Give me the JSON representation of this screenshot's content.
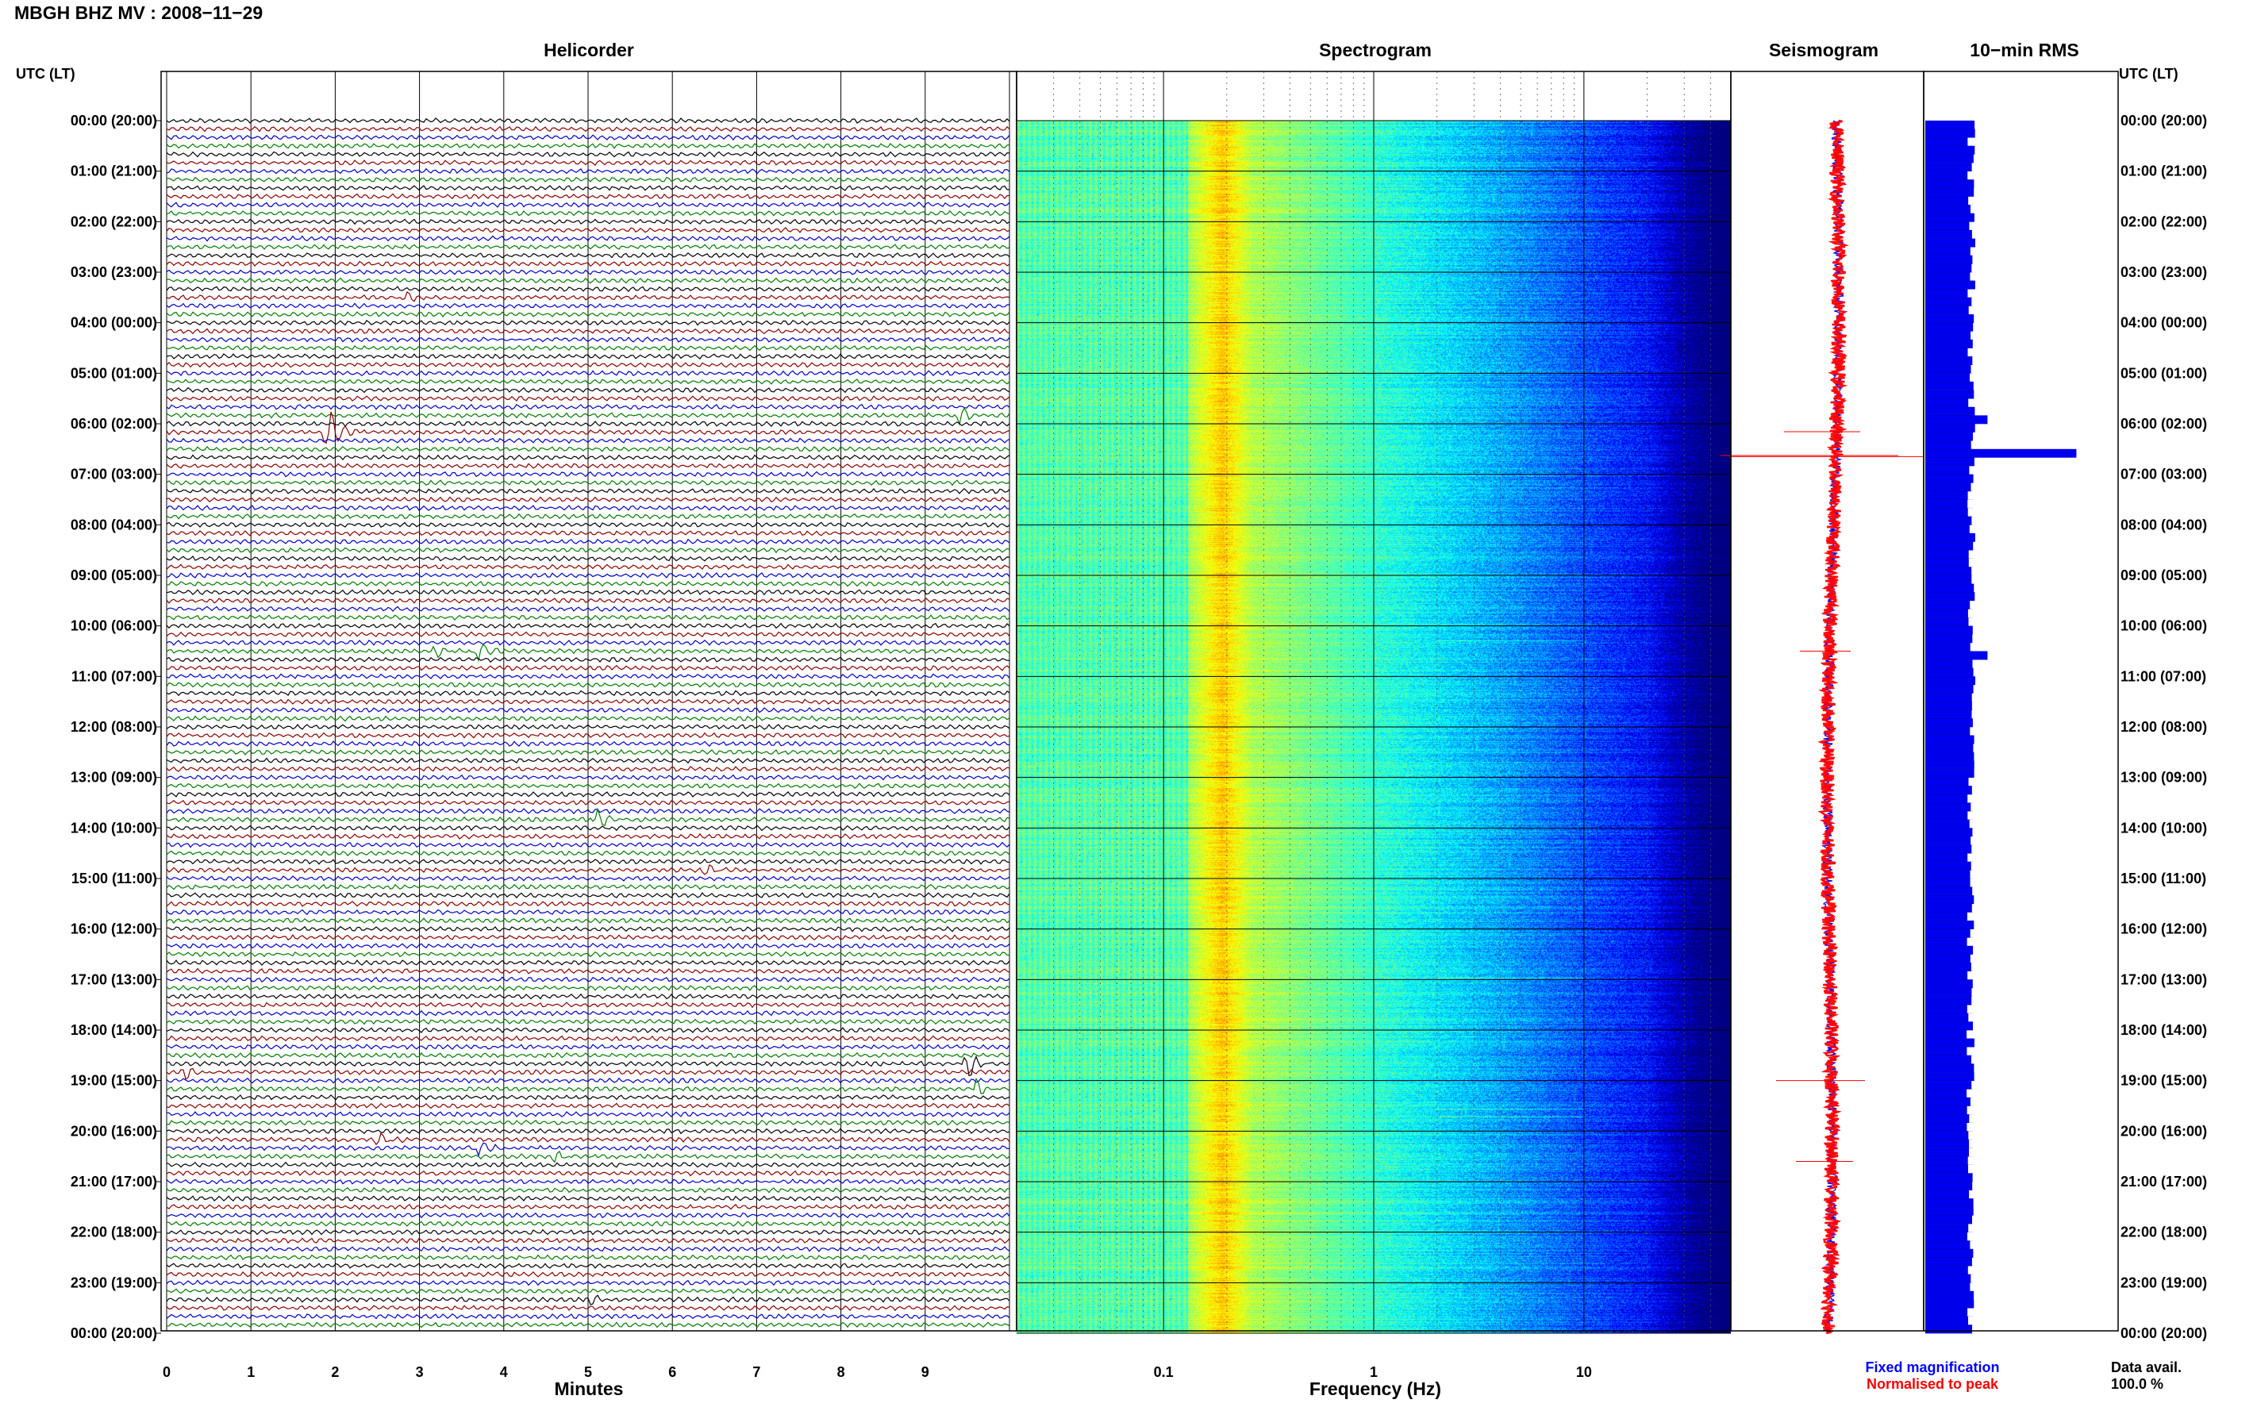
{
  "header": {
    "title": "MBGH BHZ MV : 2008−11−29",
    "utc_label_left": "UTC (LT)",
    "utc_label_right": "UTC (LT)"
  },
  "panels": {
    "helicorder": "Helicorder",
    "spectrogram": "Spectrogram",
    "seismogram": "Seismogram",
    "rms": "10−min RMS"
  },
  "footer": {
    "legend_fixed": "Fixed magnification",
    "legend_normalised": "Normalised to peak",
    "data_avail_label": "Data avail.",
    "data_avail_value": "100.0 %"
  },
  "colors": {
    "helicorder_traces": [
      "#000000",
      "#8b0000",
      "#0000c8",
      "#007d00"
    ],
    "fixed": "#0000ff",
    "normalised": "#ff0000",
    "rms_bar": "#0000ee",
    "spectrogram_low": "#0a1ec8",
    "spectrogram_peak": "#e6e600"
  },
  "chart_data": [
    {
      "type": "line",
      "name": "Helicorder",
      "xlabel": "Minutes",
      "xlim": [
        0,
        10
      ],
      "x_ticks": [
        "0",
        "1",
        "2",
        "3",
        "4",
        "5",
        "6",
        "7",
        "8",
        "9"
      ],
      "y_ticks": [
        "00:00 (20:00)",
        "01:00 (21:00)",
        "02:00 (22:00)",
        "03:00 (23:00)",
        "04:00 (00:00)",
        "05:00 (01:00)",
        "06:00 (02:00)",
        "07:00 (03:00)",
        "08:00 (04:00)",
        "09:00 (05:00)",
        "10:00 (06:00)",
        "11:00 (07:00)",
        "12:00 (08:00)",
        "13:00 (09:00)",
        "14:00 (10:00)",
        "15:00 (11:00)",
        "16:00 (12:00)",
        "17:00 (13:00)",
        "18:00 (14:00)",
        "19:00 (15:00)",
        "20:00 (16:00)",
        "21:00 (17:00)",
        "22:00 (18:00)",
        "23:00 (19:00)",
        "00:00 (20:00)"
      ],
      "line_count": 144,
      "events": [
        {
          "line": 37,
          "minute": 1.9,
          "amplitude": 5.0
        },
        {
          "line": 35,
          "minute": 9.4,
          "amplitude": 1.5
        },
        {
          "line": 21,
          "minute": 2.8,
          "amplitude": 1.2
        },
        {
          "line": 63,
          "minute": 3.7,
          "amplitude": 1.8
        },
        {
          "line": 63,
          "minute": 3.2,
          "amplitude": 1.0
        },
        {
          "line": 83,
          "minute": 5.1,
          "amplitude": 1.5
        },
        {
          "line": 89,
          "minute": 6.4,
          "amplitude": 1.2
        },
        {
          "line": 112,
          "minute": 9.5,
          "amplitude": 2.2
        },
        {
          "line": 113,
          "minute": 0.2,
          "amplitude": 1.2
        },
        {
          "line": 115,
          "minute": 9.6,
          "amplitude": 1.2
        },
        {
          "line": 121,
          "minute": 2.5,
          "amplitude": 1.4
        },
        {
          "line": 122,
          "minute": 3.7,
          "amplitude": 1.5
        },
        {
          "line": 123,
          "minute": 4.6,
          "amplitude": 1.0
        },
        {
          "line": 140,
          "minute": 5.0,
          "amplitude": 1.0
        }
      ]
    },
    {
      "type": "heatmap",
      "name": "Spectrogram",
      "xlabel": "Frequency (Hz)",
      "x_scale": "log",
      "xlim": [
        0.02,
        50
      ],
      "x_ticks": [
        "0.1",
        "1",
        "10"
      ],
      "peak_band_hz": [
        0.15,
        0.25
      ]
    },
    {
      "type": "line",
      "name": "Seismogram",
      "series": [
        {
          "name": "Fixed magnification"
        },
        {
          "name": "Normalised to peak"
        }
      ]
    },
    {
      "type": "bar",
      "name": "10-min RMS",
      "bin_minutes": 10,
      "bins": 144,
      "spikes": [
        {
          "bin": 39,
          "value": 3.4
        },
        {
          "bin": 35,
          "value": 1.4
        },
        {
          "bin": 63,
          "value": 1.4
        }
      ],
      "baseline": 1.0
    }
  ]
}
